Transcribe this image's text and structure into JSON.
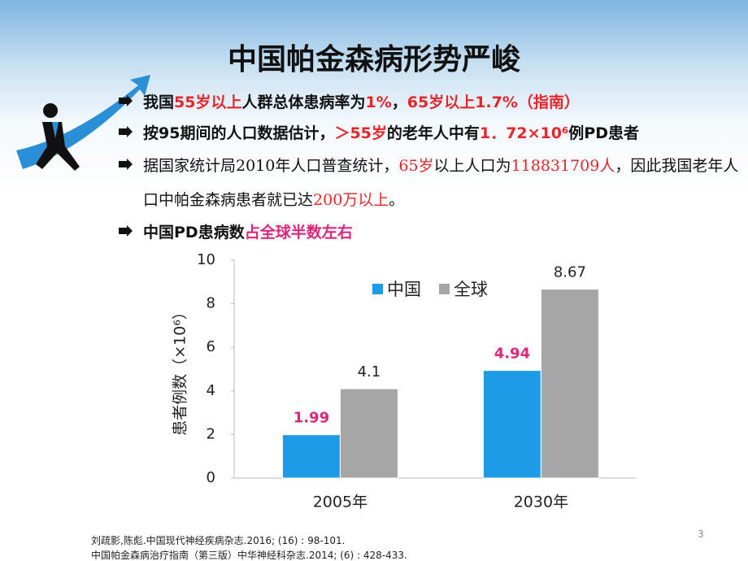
{
  "slide": {
    "title": "中国帕金森病形势严峻",
    "bullets": [
      {
        "bold": true,
        "runs": [
          {
            "text": "我国",
            "color": "#111111"
          },
          {
            "text": "55岁以上",
            "color": "#e8252a"
          },
          {
            "text": "人群总体患病率为",
            "color": "#111111"
          },
          {
            "text": "1%",
            "color": "#e8252a"
          },
          {
            "text": "，",
            "color": "#111111"
          },
          {
            "text": "65岁以上1.7%（指南）",
            "color": "#e8252a"
          }
        ]
      },
      {
        "bold": true,
        "runs": [
          {
            "text": "按95期间的人口数据估计，",
            "color": "#111111"
          },
          {
            "text": "＞55岁",
            "color": "#e8252a"
          },
          {
            "text": "的老年人中有",
            "color": "#111111"
          },
          {
            "text": "1．72×10⁶",
            "color": "#e8252a"
          },
          {
            "text": "例PD患者",
            "color": "#111111"
          }
        ]
      },
      {
        "bold": false,
        "runs": [
          {
            "text": "据国家统计局2010年人口普查统计，",
            "color": "#111111"
          },
          {
            "text": "65岁",
            "color": "#e8252a"
          },
          {
            "text": "以上人口为",
            "color": "#111111"
          },
          {
            "text": "118831709人",
            "color": "#e8252a"
          },
          {
            "text": "，因此我国老年人口中帕金森病患者就已达",
            "color": "#111111"
          },
          {
            "text": "200万以上",
            "color": "#e8252a"
          },
          {
            "text": "。",
            "color": "#111111"
          }
        ]
      },
      {
        "bold": true,
        "runs": [
          {
            "text": "中国PD患病数",
            "color": "#111111"
          },
          {
            "text": "占全球半数左右",
            "color": "#e0267a"
          }
        ]
      }
    ],
    "references": [
      "刘疏影,陈彪.中国现代神经疾病杂志.2016; (16) : 98-101.",
      "中国帕金森病治疗指南（第三版）中华神经科杂志.2014; (6) : 428-433."
    ],
    "page_number": "3"
  },
  "chart_data": {
    "type": "bar",
    "y_label": "患者例数（×10⁶）",
    "categories": [
      "2005年",
      "2030年"
    ],
    "series": [
      {
        "name": "中国",
        "color": "#1e9be6",
        "label_color": "#e0267a",
        "values": [
          1.99,
          4.94
        ]
      },
      {
        "name": "全球",
        "color": "#a6a6a6",
        "label_color": "#222222",
        "values": [
          4.1,
          8.67
        ]
      }
    ],
    "ylim": [
      0,
      10
    ],
    "yticks": [
      0,
      2,
      4,
      6,
      8,
      10
    ],
    "grid": false
  }
}
